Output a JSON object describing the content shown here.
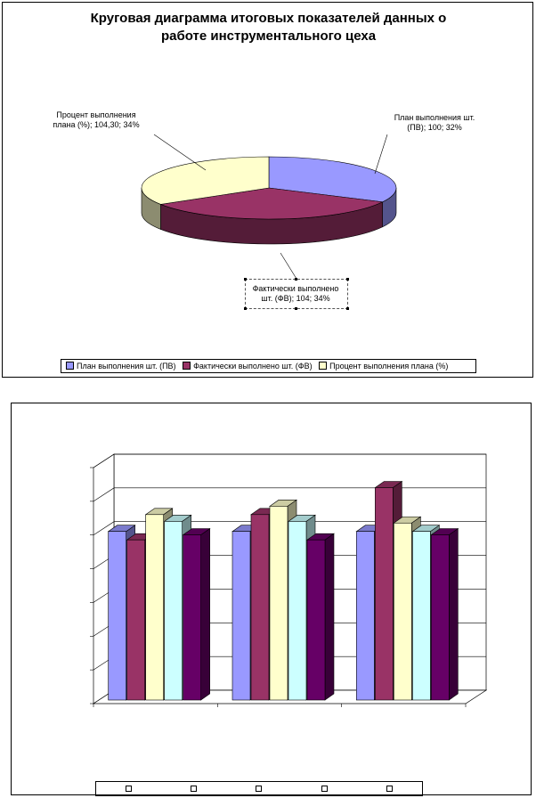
{
  "chart_data": [
    {
      "type": "pie",
      "title": "Круговая диаграмма итоговых показателей данных о работе инструментального цеха",
      "title_lines": [
        "Круговая диаграмма итоговых показателей данных о",
        "работе инструментального цеха"
      ],
      "slices": [
        {
          "name": "План выполнения шт. (ПВ)",
          "value": 100,
          "percent": 32,
          "color": "#9999ff",
          "label_lines": [
            "План выполнения шт.",
            "(ПВ); 100; 32%"
          ]
        },
        {
          "name": "Фактически выполнено шт. (ФВ)",
          "value": 104,
          "percent": 34,
          "color": "#993366",
          "label_lines": [
            "Фактически выполнено",
            "шт. (ФВ); 104; 34%"
          ]
        },
        {
          "name": "Процент выполнения плана (%)",
          "value": 104.3,
          "percent": 34,
          "color": "#ffffcc",
          "label_lines": [
            "Процент выполнения",
            "плана (%); 104,30; 34%"
          ]
        }
      ],
      "legend": {
        "position": "bottom",
        "entries": [
          "План выполнения шт. (ПВ)",
          "Фактически выполнено шт. (ФВ)",
          "Процент выполнения плана (%)"
        ]
      }
    },
    {
      "type": "bar",
      "style": "3d-clustered",
      "groups": 3,
      "ylim": [
        0,
        140
      ],
      "grid": true,
      "series": [
        {
          "color": "#9999ff",
          "values": [
            100,
            100,
            100
          ]
        },
        {
          "color": "#993366",
          "values": [
            95,
            110,
            126
          ]
        },
        {
          "color": "#ffffcc",
          "values": [
            110,
            115,
            105
          ]
        },
        {
          "color": "#ccffff",
          "values": [
            106,
            106,
            100
          ]
        },
        {
          "color": "#660066",
          "values": [
            98,
            95,
            98
          ]
        }
      ],
      "legend": {
        "position": "bottom",
        "entries": [
          "",
          "",
          "",
          "",
          ""
        ]
      }
    }
  ]
}
